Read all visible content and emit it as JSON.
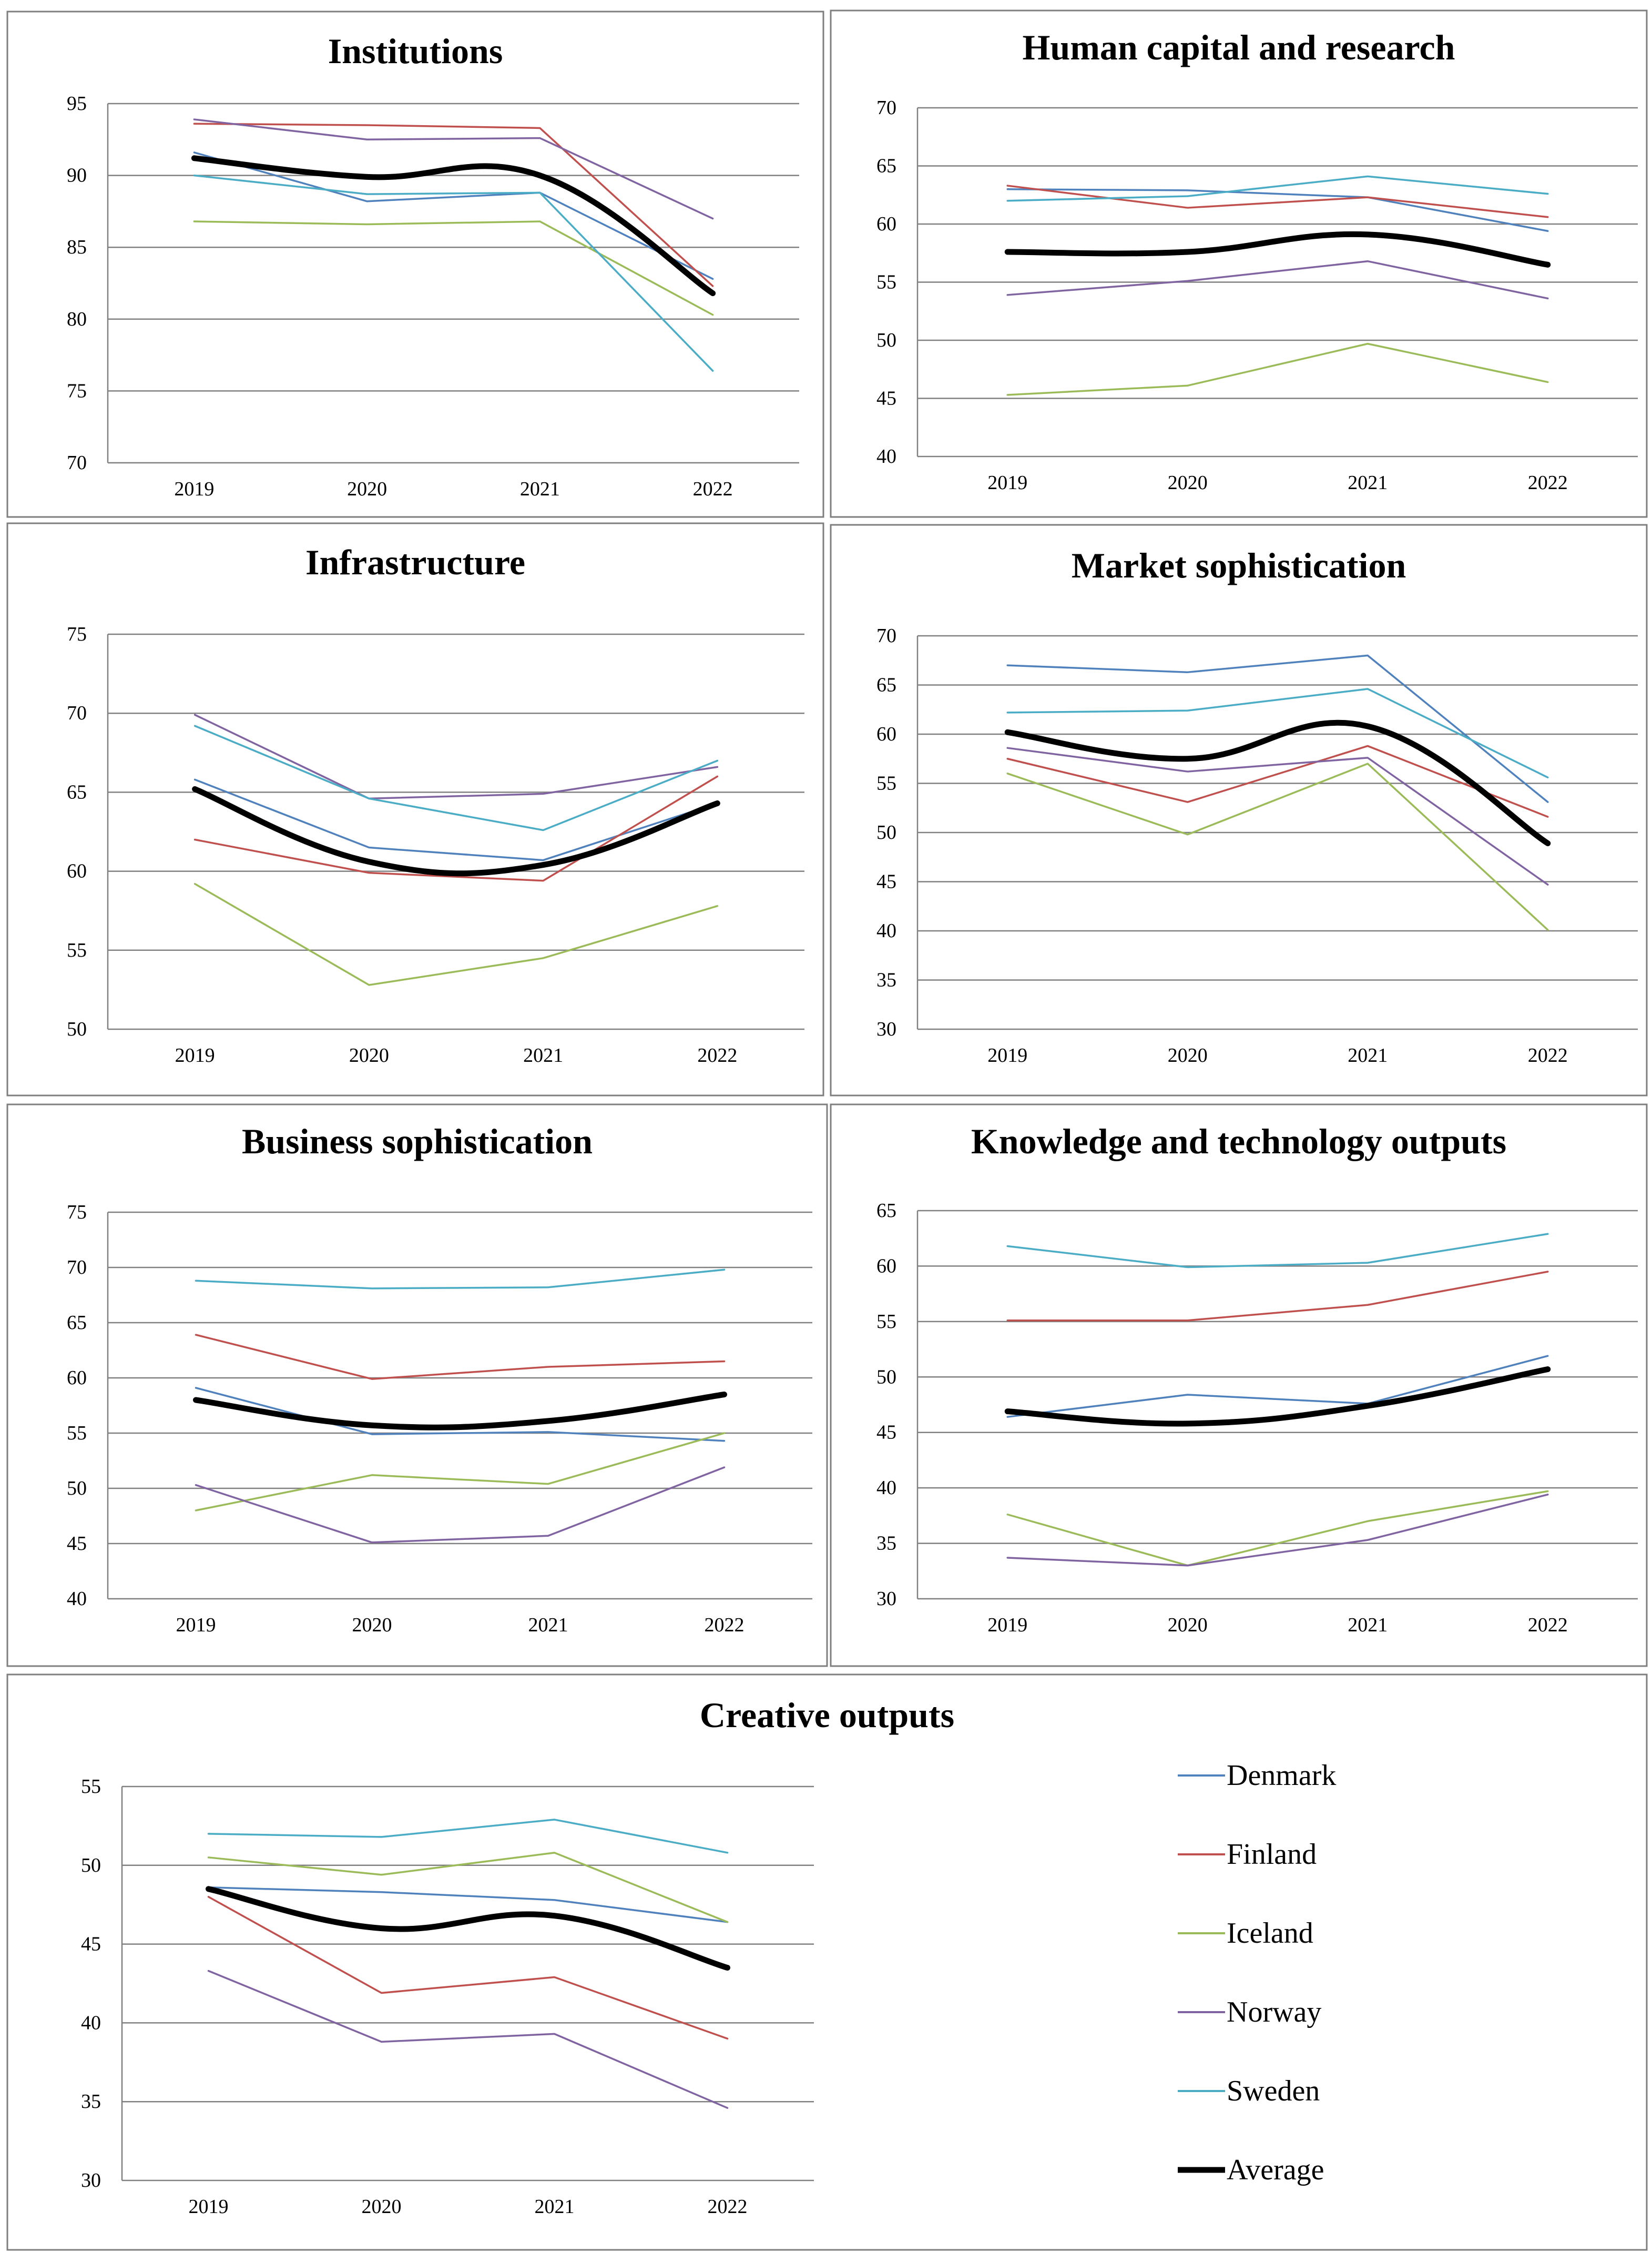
{
  "chart_data": [
    {
      "type": "line",
      "title": "Institutions",
      "categories": [
        "2019",
        "2020",
        "2021",
        "2022"
      ],
      "ylim": [
        70,
        95
      ],
      "ystep": 5,
      "series": [
        {
          "name": "Denmark",
          "values": [
            91.6,
            88.2,
            88.8,
            82.8
          ]
        },
        {
          "name": "Finland",
          "values": [
            93.6,
            93.5,
            93.3,
            82.3
          ]
        },
        {
          "name": "Iceland",
          "values": [
            86.8,
            86.6,
            86.8,
            80.3
          ]
        },
        {
          "name": "Norway",
          "values": [
            93.9,
            92.5,
            92.6,
            87.0
          ]
        },
        {
          "name": "Sweden",
          "values": [
            90.0,
            88.7,
            88.8,
            76.4
          ]
        },
        {
          "name": "Average",
          "values": [
            91.2,
            89.9,
            90.0,
            81.8
          ]
        }
      ]
    },
    {
      "type": "line",
      "title": "Human capital and research",
      "categories": [
        "2019",
        "2020",
        "2021",
        "2022"
      ],
      "ylim": [
        40,
        70
      ],
      "ystep": 5,
      "series": [
        {
          "name": "Denmark",
          "values": [
            63.0,
            62.9,
            62.3,
            59.4
          ]
        },
        {
          "name": "Finland",
          "values": [
            63.3,
            61.4,
            62.3,
            60.6
          ]
        },
        {
          "name": "Iceland",
          "values": [
            45.3,
            46.1,
            49.7,
            46.4
          ]
        },
        {
          "name": "Norway",
          "values": [
            53.9,
            55.1,
            56.8,
            53.6
          ]
        },
        {
          "name": "Sweden",
          "values": [
            62.0,
            62.4,
            64.1,
            62.6
          ]
        },
        {
          "name": "Average",
          "values": [
            57.6,
            57.6,
            59.1,
            56.5
          ]
        }
      ]
    },
    {
      "type": "line",
      "title": "Infrastructure",
      "categories": [
        "2019",
        "2020",
        "2021",
        "2022"
      ],
      "ylim": [
        50,
        75
      ],
      "ystep": 5,
      "series": [
        {
          "name": "Denmark",
          "values": [
            65.8,
            61.5,
            60.7,
            64.3
          ]
        },
        {
          "name": "Finland",
          "values": [
            62.0,
            59.9,
            59.4,
            66.0
          ]
        },
        {
          "name": "Iceland",
          "values": [
            59.2,
            52.8,
            54.5,
            57.8
          ]
        },
        {
          "name": "Norway",
          "values": [
            69.9,
            64.6,
            64.9,
            66.6
          ]
        },
        {
          "name": "Sweden",
          "values": [
            69.2,
            64.6,
            62.6,
            67.0
          ]
        },
        {
          "name": "Average",
          "values": [
            65.2,
            60.6,
            60.4,
            64.3
          ]
        }
      ]
    },
    {
      "type": "line",
      "title": "Market sophistication",
      "categories": [
        "2019",
        "2020",
        "2021",
        "2022"
      ],
      "ylim": [
        30,
        70
      ],
      "ystep": 5,
      "series": [
        {
          "name": "Denmark",
          "values": [
            67.0,
            66.3,
            68.0,
            53.1
          ]
        },
        {
          "name": "Finland",
          "values": [
            57.5,
            53.1,
            58.8,
            51.6
          ]
        },
        {
          "name": "Iceland",
          "values": [
            56.0,
            49.8,
            57.0,
            40.1
          ]
        },
        {
          "name": "Norway",
          "values": [
            58.6,
            56.2,
            57.6,
            44.7
          ]
        },
        {
          "name": "Sweden",
          "values": [
            62.2,
            62.4,
            64.6,
            55.6
          ]
        },
        {
          "name": "Average",
          "values": [
            60.2,
            57.5,
            60.8,
            48.9
          ]
        }
      ]
    },
    {
      "type": "line",
      "title": "Business sophistication",
      "categories": [
        "2019",
        "2020",
        "2021",
        "2022"
      ],
      "ylim": [
        40,
        75
      ],
      "ystep": 5,
      "series": [
        {
          "name": "Denmark",
          "values": [
            59.1,
            54.9,
            55.1,
            54.3
          ]
        },
        {
          "name": "Finland",
          "values": [
            63.9,
            59.9,
            61.0,
            61.5
          ]
        },
        {
          "name": "Iceland",
          "values": [
            48.0,
            51.2,
            50.4,
            55.0
          ]
        },
        {
          "name": "Norway",
          "values": [
            50.3,
            45.1,
            45.7,
            51.9
          ]
        },
        {
          "name": "Sweden",
          "values": [
            68.8,
            68.1,
            68.2,
            69.8
          ]
        },
        {
          "name": "Average",
          "values": [
            58.0,
            55.7,
            56.1,
            58.5
          ]
        }
      ]
    },
    {
      "type": "line",
      "title": "Knowledge and technology outputs",
      "categories": [
        "2019",
        "2020",
        "2021",
        "2022"
      ],
      "ylim": [
        30,
        65
      ],
      "ystep": 5,
      "series": [
        {
          "name": "Denmark",
          "values": [
            46.4,
            48.4,
            47.6,
            51.9
          ]
        },
        {
          "name": "Finland",
          "values": [
            55.1,
            55.1,
            56.5,
            59.5
          ]
        },
        {
          "name": "Iceland",
          "values": [
            37.6,
            33.0,
            37.0,
            39.7
          ]
        },
        {
          "name": "Norway",
          "values": [
            33.7,
            33.0,
            35.3,
            39.4
          ]
        },
        {
          "name": "Sweden",
          "values": [
            61.8,
            59.9,
            60.3,
            62.9
          ]
        },
        {
          "name": "Average",
          "values": [
            46.9,
            45.8,
            47.4,
            50.7
          ]
        }
      ]
    },
    {
      "type": "line",
      "title": "Creative outputs",
      "categories": [
        "2019",
        "2020",
        "2021",
        "2022"
      ],
      "ylim": [
        30,
        55
      ],
      "ystep": 5,
      "series": [
        {
          "name": "Denmark",
          "values": [
            48.6,
            48.3,
            47.8,
            46.4
          ]
        },
        {
          "name": "Finland",
          "values": [
            48.0,
            41.9,
            42.9,
            39.0
          ]
        },
        {
          "name": "Iceland",
          "values": [
            50.5,
            49.4,
            50.8,
            46.4
          ]
        },
        {
          "name": "Norway",
          "values": [
            43.3,
            38.8,
            39.3,
            34.6
          ]
        },
        {
          "name": "Sweden",
          "values": [
            52.0,
            51.8,
            52.9,
            50.8
          ]
        },
        {
          "name": "Average",
          "values": [
            48.5,
            46.0,
            46.8,
            43.5
          ]
        }
      ]
    }
  ],
  "legend": {
    "entries": [
      {
        "name": "Denmark",
        "color": "#4f81bd"
      },
      {
        "name": "Finland",
        "color": "#c0504d"
      },
      {
        "name": "Iceland",
        "color": "#9bbb59"
      },
      {
        "name": "Norway",
        "color": "#8064a2"
      },
      {
        "name": "Sweden",
        "color": "#4bacc6"
      },
      {
        "name": "Average",
        "color": "#000000"
      }
    ]
  }
}
